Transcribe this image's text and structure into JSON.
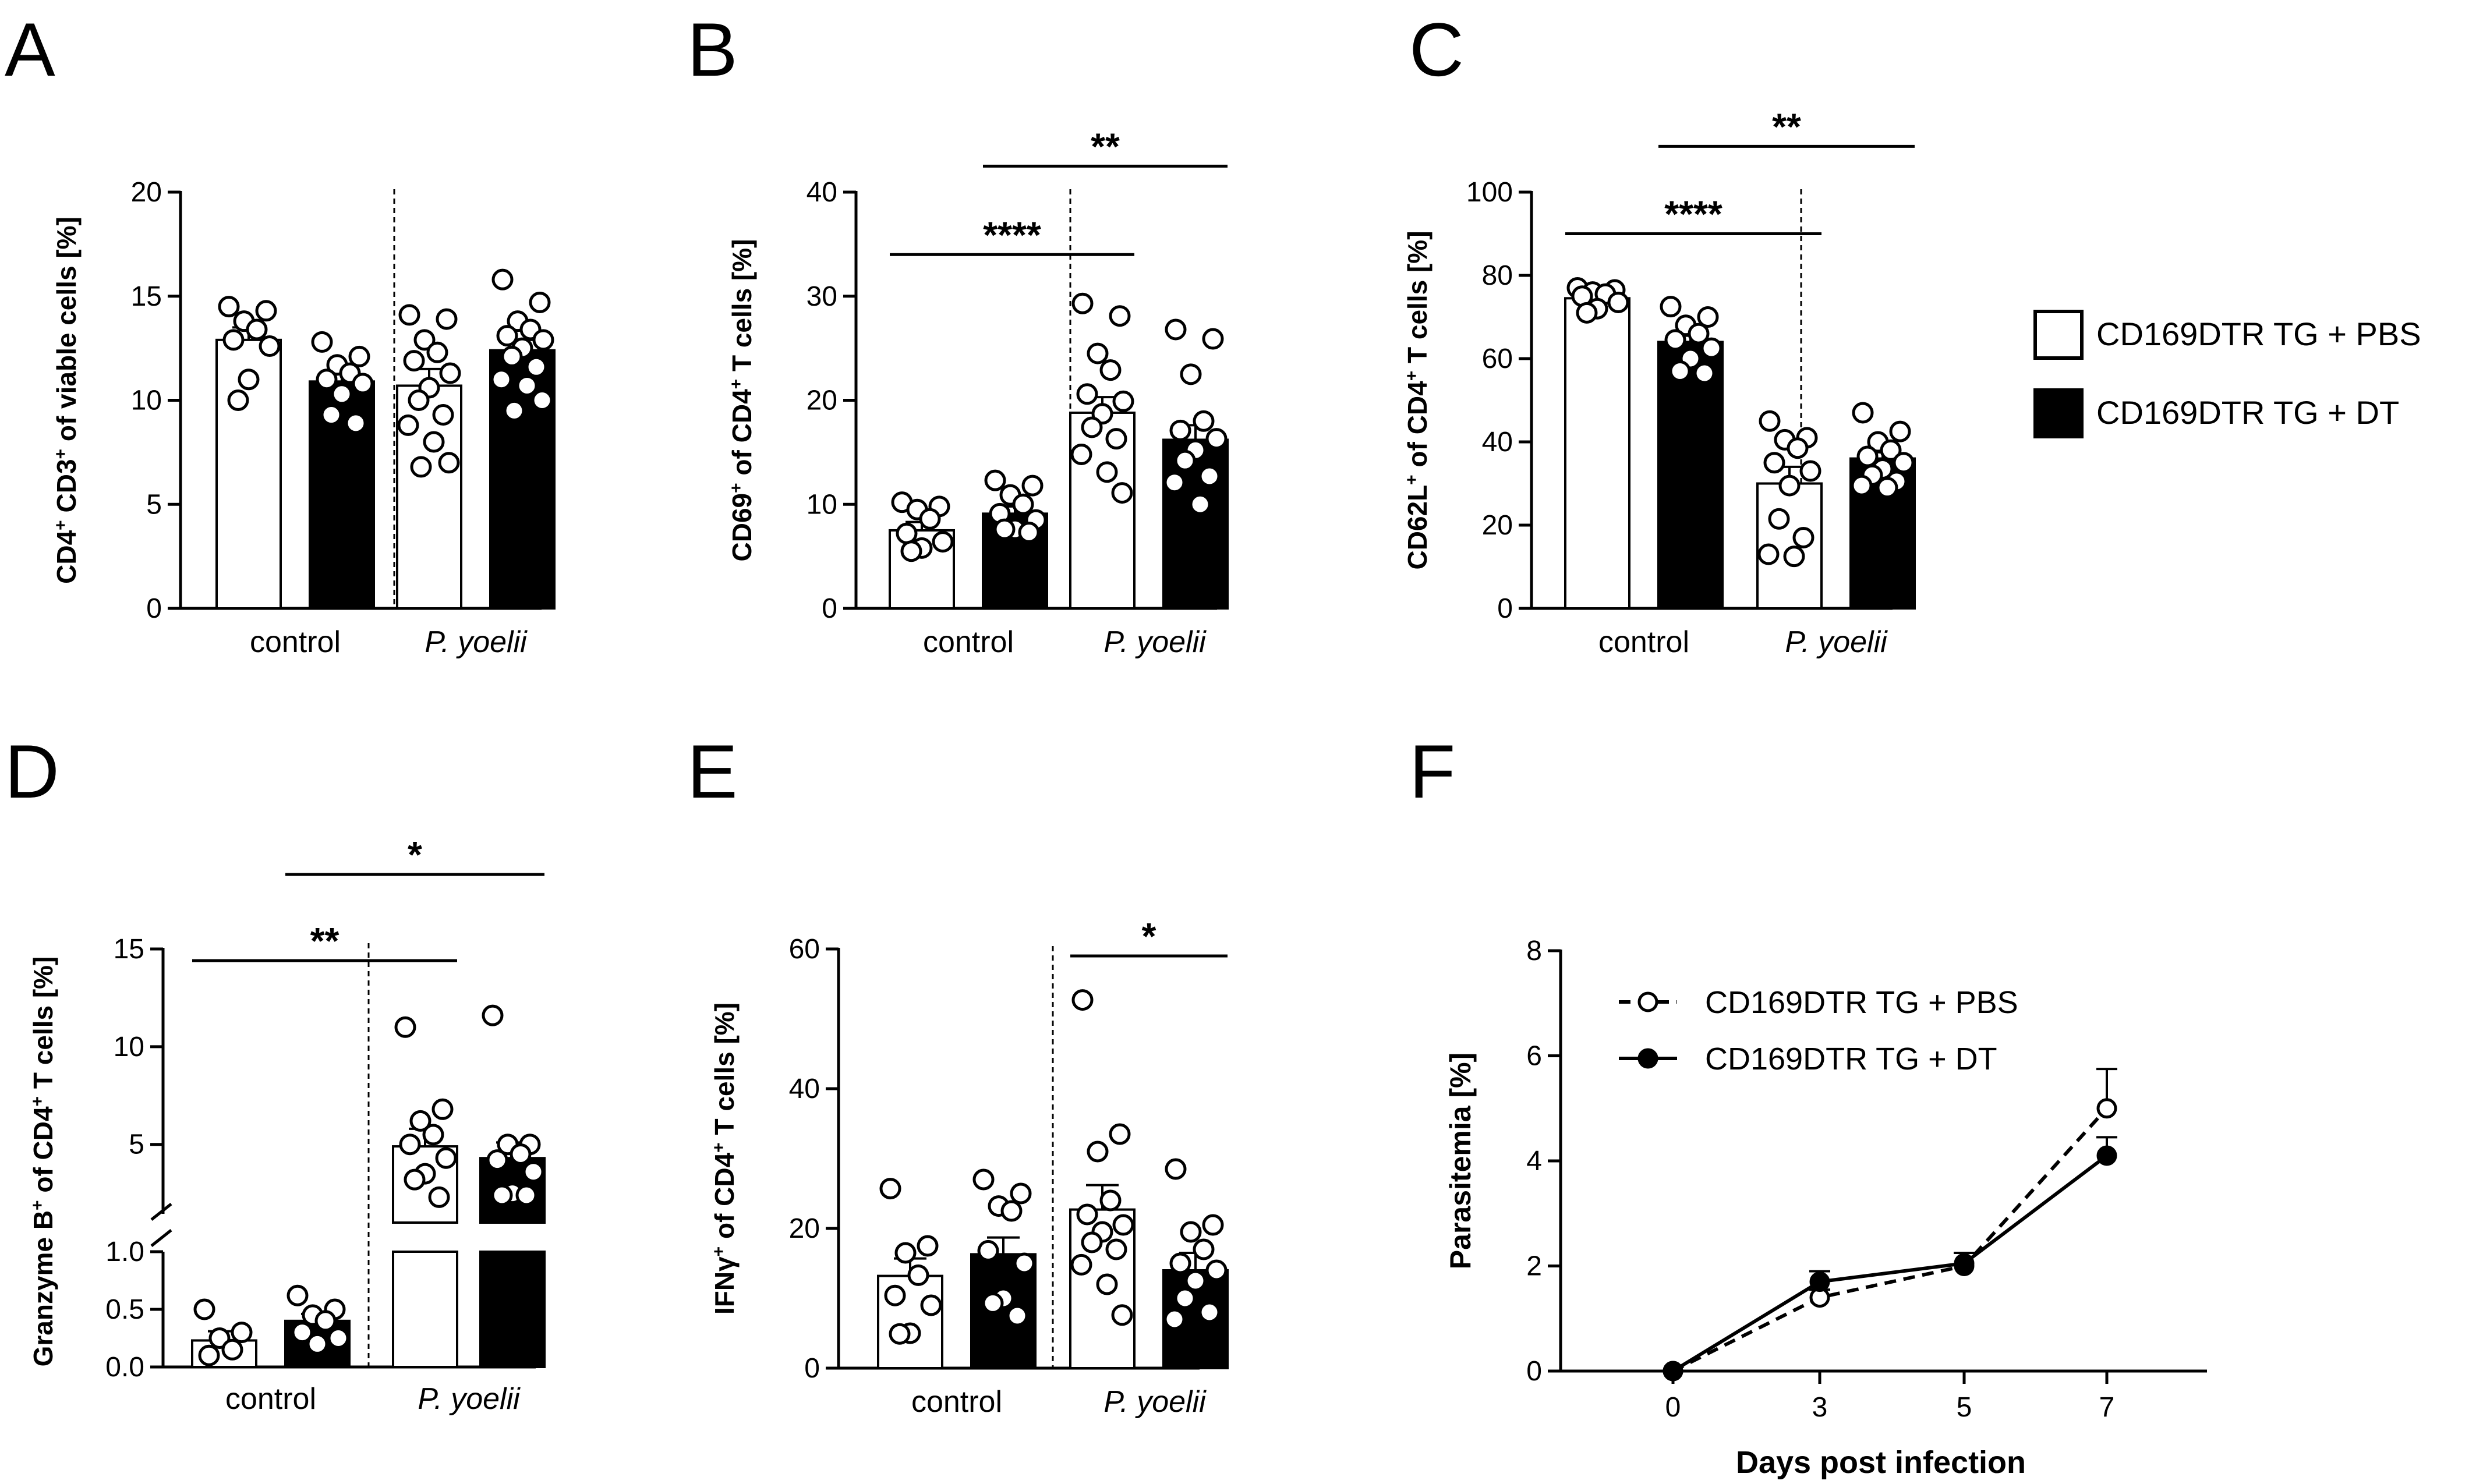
{
  "legend_items": [
    "CD169DTR TG + PBS",
    "CD169DTR TG + DT"
  ],
  "colors": {
    "pbs_fill": "#ffffff",
    "dt_fill": "#000000",
    "ink": "#000000"
  },
  "chart_data": [
    {
      "panel": "A",
      "type": "bar",
      "ylabel_parts": [
        "CD4",
        "+",
        " CD3",
        "+",
        " of viable cells [%]"
      ],
      "ylim": [
        0,
        20
      ],
      "yticks": [
        0,
        5,
        10,
        15,
        20
      ],
      "ytick_labels": [
        "0",
        "5",
        "10",
        "15",
        "20"
      ],
      "groups": [
        {
          "label": "control",
          "italic": false
        },
        {
          "label": "P. yoelii",
          "italic": true
        }
      ],
      "bars": [
        {
          "group": 0,
          "series": "PBS",
          "value": 12.9,
          "sem": 0.6,
          "points": [
            14.5,
            14.3,
            13.8,
            13.4,
            12.9,
            12.6,
            11.0,
            10.0
          ]
        },
        {
          "group": 0,
          "series": "DT",
          "value": 10.9,
          "sem": 0.5,
          "points": [
            12.8,
            12.1,
            11.7,
            11.3,
            11.0,
            10.8,
            10.3,
            9.3,
            8.9
          ]
        },
        {
          "group": 1,
          "series": "PBS",
          "value": 10.7,
          "sem": 0.8,
          "points": [
            14.1,
            13.9,
            12.9,
            12.3,
            11.9,
            11.3,
            10.6,
            10.0,
            9.3,
            8.8,
            8.0,
            7.0,
            6.8
          ]
        },
        {
          "group": 1,
          "series": "DT",
          "value": 12.4,
          "sem": 0.5,
          "points": [
            15.8,
            14.7,
            13.8,
            13.4,
            13.1,
            12.9,
            12.5,
            12.1,
            11.6,
            11.0,
            10.7,
            10.0,
            9.5
          ]
        }
      ],
      "significance": []
    },
    {
      "panel": "B",
      "type": "bar",
      "ylabel_parts": [
        "CD69",
        "+",
        " of CD4",
        "+",
        "  T cells [%]"
      ],
      "ylim": [
        0,
        40
      ],
      "yticks": [
        0,
        10,
        20,
        30,
        40
      ],
      "ytick_labels": [
        "0",
        "10",
        "20",
        "30",
        "40"
      ],
      "groups": [
        {
          "label": "control",
          "italic": false
        },
        {
          "label": "P. yoelii",
          "italic": true
        }
      ],
      "bars": [
        {
          "group": 0,
          "series": "PBS",
          "value": 7.5,
          "sem": 0.8,
          "points": [
            10.2,
            9.8,
            9.5,
            8.6,
            7.2,
            6.4,
            5.8,
            5.5
          ]
        },
        {
          "group": 0,
          "series": "DT",
          "value": 9.1,
          "sem": 0.7,
          "points": [
            12.3,
            11.8,
            10.9,
            10.0,
            9.1,
            8.5,
            7.6,
            7.6,
            7.3
          ]
        },
        {
          "group": 1,
          "series": "PBS",
          "value": 18.8,
          "sem": 1.5,
          "points": [
            29.3,
            28.1,
            24.5,
            22.9,
            20.6,
            19.9,
            18.7,
            17.4,
            16.3,
            14.8,
            13.1,
            11.1
          ]
        },
        {
          "group": 1,
          "series": "DT",
          "value": 16.2,
          "sem": 1.4,
          "points": [
            26.8,
            25.9,
            22.5,
            18.0,
            17.1,
            16.3,
            15.2,
            14.2,
            12.7,
            12.1,
            10.0
          ]
        }
      ],
      "significance": [
        {
          "from_bar": 0,
          "to_bar": 2,
          "y": 34,
          "label": "****"
        },
        {
          "from_bar": 1,
          "to_bar": 3,
          "y": 42.5,
          "label": "**"
        }
      ]
    },
    {
      "panel": "C",
      "type": "bar",
      "ylabel_parts": [
        "CD62L",
        "+",
        " of CD4",
        "+",
        " T cells [%]"
      ],
      "ylim": [
        0,
        100
      ],
      "yticks": [
        0,
        20,
        40,
        60,
        80,
        100
      ],
      "ytick_labels": [
        "0",
        "20",
        "40",
        "60",
        "80",
        "100"
      ],
      "groups": [
        {
          "label": "control",
          "italic": false
        },
        {
          "label": "P. yoelii",
          "italic": true
        }
      ],
      "bars": [
        {
          "group": 0,
          "series": "PBS",
          "value": 74.5,
          "sem": 1.3,
          "points": [
            77.0,
            76.5,
            76.0,
            75.5,
            75.0,
            73.5,
            72.0,
            71.0
          ]
        },
        {
          "group": 0,
          "series": "DT",
          "value": 64.0,
          "sem": 1.5,
          "points": [
            72.5,
            70.0,
            68.0,
            66.0,
            64.5,
            62.5,
            60.0,
            57.0,
            56.5
          ]
        },
        {
          "group": 1,
          "series": "PBS",
          "value": 30.0,
          "sem": 4.0,
          "points": [
            45.0,
            41.0,
            40.5,
            38.5,
            35.0,
            33.0,
            29.5,
            21.5,
            17.0,
            13.0,
            12.5
          ]
        },
        {
          "group": 1,
          "series": "DT",
          "value": 36.0,
          "sem": 1.5,
          "points": [
            47.0,
            42.5,
            40.0,
            38.0,
            36.5,
            35.0,
            33.5,
            32.0,
            30.5,
            29.5,
            29.0
          ]
        }
      ],
      "significance": [
        {
          "from_bar": 0,
          "to_bar": 2,
          "y": 90,
          "label": "****"
        },
        {
          "from_bar": 1,
          "to_bar": 3,
          "y": 111,
          "label": "**"
        }
      ]
    },
    {
      "panel": "D",
      "type": "bar",
      "broken_axis": true,
      "ylabel_parts": [
        "Granzyme B",
        "+",
        " of CD4",
        "+",
        " T cells [%]"
      ],
      "ylim_lower": [
        0,
        1
      ],
      "ylim_upper": [
        1,
        15
      ],
      "yticks_lower": [
        0,
        0.5,
        1.0
      ],
      "ytick_labels_lower": [
        "0.0",
        "0.5",
        "1.0"
      ],
      "yticks_upper": [
        5,
        10,
        15
      ],
      "ytick_labels_upper": [
        "5",
        "10",
        "15"
      ],
      "groups": [
        {
          "label": "control",
          "italic": false
        },
        {
          "label": "P. yoelii",
          "italic": true
        }
      ],
      "bars": [
        {
          "group": 0,
          "series": "PBS",
          "value": 0.23,
          "sem": 0.08,
          "points": [
            0.5,
            0.3,
            0.25,
            0.15,
            0.1
          ]
        },
        {
          "group": 0,
          "series": "DT",
          "value": 0.4,
          "sem": 0.06,
          "points": [
            0.62,
            0.5,
            0.45,
            0.4,
            0.3,
            0.25,
            0.2
          ]
        },
        {
          "group": 1,
          "series": "PBS",
          "value": 4.9,
          "sem": 0.9,
          "points": [
            11.0,
            6.8,
            6.2,
            5.5,
            5.0,
            4.3,
            3.5,
            3.2,
            2.3
          ]
        },
        {
          "group": 1,
          "series": "DT",
          "value": 4.3,
          "sem": 0.8,
          "points": [
            11.6,
            5.0,
            5.0,
            4.5,
            4.2,
            3.6,
            2.5,
            2.4,
            2.4
          ]
        }
      ],
      "significance": [
        {
          "from_bar": 0,
          "to_bar": 2,
          "y": 15.2,
          "label": "**"
        },
        {
          "from_bar": 1,
          "to_bar": 3,
          "y": 20.5,
          "label": "*"
        }
      ]
    },
    {
      "panel": "E",
      "type": "bar",
      "ylabel_parts": [
        "IFNγ",
        "+",
        " of CD4",
        "+",
        " T cells [%]"
      ],
      "ylim": [
        0,
        60
      ],
      "yticks": [
        0,
        20,
        40,
        60
      ],
      "ytick_labels": [
        "0",
        "20",
        "40",
        "60"
      ],
      "groups": [
        {
          "label": "control",
          "italic": false
        },
        {
          "label": "P. yoelii",
          "italic": true
        }
      ],
      "bars": [
        {
          "group": 0,
          "series": "PBS",
          "value": 13.2,
          "sem": 2.5,
          "points": [
            25.7,
            17.5,
            16.5,
            13.3,
            10.4,
            9.0,
            5.0,
            4.9
          ]
        },
        {
          "group": 0,
          "series": "DT",
          "value": 16.3,
          "sem": 2.4,
          "points": [
            27.0,
            25.0,
            23.2,
            22.5,
            16.8,
            15.0,
            10.0,
            9.3,
            7.5
          ]
        },
        {
          "group": 1,
          "series": "PBS",
          "value": 22.7,
          "sem": 3.5,
          "points": [
            52.7,
            33.5,
            31.0,
            24.0,
            22.0,
            20.5,
            19.5,
            18.0,
            17.0,
            14.8,
            12.0,
            7.6
          ]
        },
        {
          "group": 1,
          "series": "DT",
          "value": 14.0,
          "sem": 2.5,
          "points": [
            28.5,
            20.5,
            19.5,
            17.0,
            15.0,
            14.0,
            12.5,
            10.0,
            8.0,
            7.0
          ]
        }
      ],
      "significance": [
        {
          "from_bar": 2,
          "to_bar": 3,
          "y": 59,
          "label": "*"
        }
      ]
    },
    {
      "panel": "F",
      "type": "line",
      "xlabel": "Days post infection",
      "ylabel": "Parasitemia [%]",
      "x": [
        0,
        3,
        5,
        7
      ],
      "xtick_labels": [
        "0",
        "3",
        "5",
        "7"
      ],
      "ylim": [
        0,
        8
      ],
      "yticks": [
        0,
        2,
        4,
        6,
        8
      ],
      "ytick_labels": [
        "0",
        "2",
        "4",
        "6",
        "8"
      ],
      "series": [
        {
          "name": "CD169DTR TG + PBS",
          "values": [
            0,
            1.4,
            2.0,
            5.0
          ],
          "sem": [
            0,
            0.15,
            0.25,
            0.75
          ],
          "dashed": true,
          "marker": "open"
        },
        {
          "name": "CD169DTR TG + DT",
          "values": [
            0,
            1.7,
            2.05,
            4.1
          ],
          "sem": [
            0,
            0.2,
            0.2,
            0.35
          ],
          "dashed": false,
          "marker": "filled"
        }
      ]
    }
  ]
}
